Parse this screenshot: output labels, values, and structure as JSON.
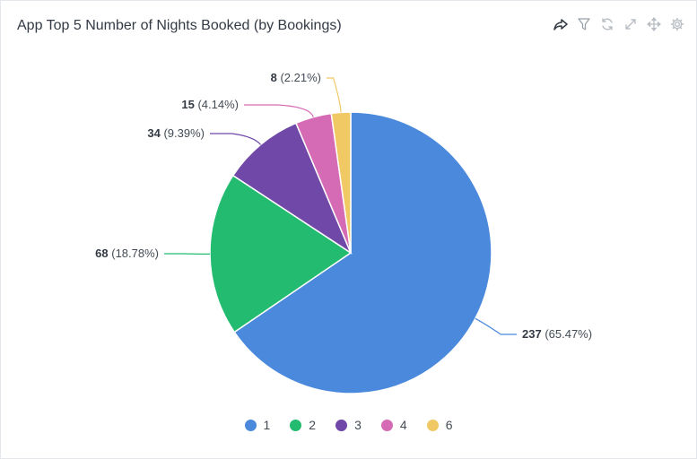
{
  "widget": {
    "title": "App Top 5 Number of Nights Booked (by Bookings)"
  },
  "toolbar": [
    {
      "icon": "share-icon"
    },
    {
      "icon": "filter-icon"
    },
    {
      "icon": "refresh-icon"
    },
    {
      "icon": "expand-icon"
    },
    {
      "icon": "move-icon"
    },
    {
      "icon": "gear-icon"
    }
  ],
  "chart_data": {
    "type": "pie",
    "title": "App Top 5 Number of Nights Booked (by Bookings)",
    "categories": [
      "1",
      "2",
      "3",
      "4",
      "6"
    ],
    "values": [
      237,
      68,
      34,
      15,
      8
    ],
    "labels": [
      {
        "value": "237",
        "percent": "(65.47%)"
      },
      {
        "value": "68",
        "percent": "(18.78%)"
      },
      {
        "value": "34",
        "percent": "(9.39%)"
      },
      {
        "value": "15",
        "percent": "(4.14%)"
      },
      {
        "value": "8",
        "percent": "(2.21%)"
      }
    ],
    "colors": [
      "#4a89dc",
      "#22bb6f",
      "#7048a8",
      "#d66bb5",
      "#f0c864"
    ],
    "legend_position": "bottom"
  }
}
